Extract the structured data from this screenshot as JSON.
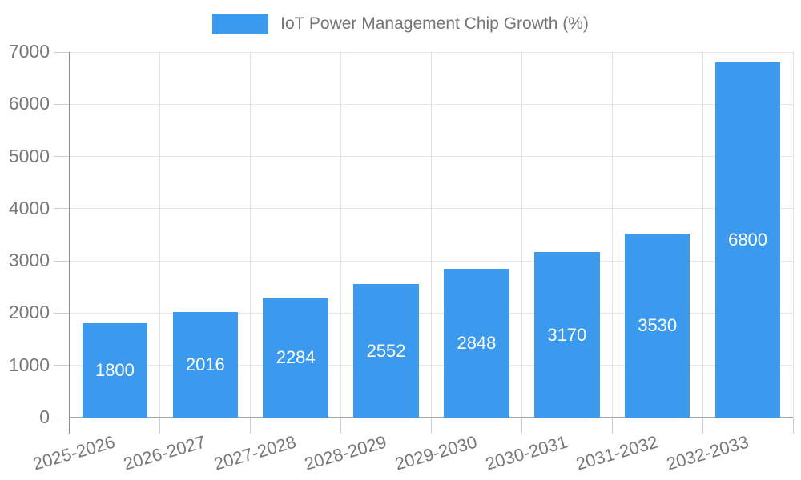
{
  "legend": {
    "label": "IoT Power Management Chip Growth (%)",
    "swatch_color": "#3B9AED"
  },
  "colors": {
    "bar": "#3B9AED",
    "bar_label": "#FFFFFF",
    "axis_text": "#787878",
    "legend_text": "#757575",
    "grid_horizontal": "#E7E7E7",
    "grid_vertical": "#E1E1E1",
    "y_axis_line": "#8A8A8A",
    "x_axis_line": "#A6A6A6",
    "tick": "#CDCDCD",
    "background": "#FFFFFF"
  },
  "chart_data": {
    "type": "bar",
    "title": "IoT Power Management Chip Growth (%)",
    "categories": [
      "2025-2026",
      "2026-2027",
      "2027-2028",
      "2028-2029",
      "2029-2030",
      "2030-2031",
      "2031-2032",
      "2032-2033"
    ],
    "values": [
      1800,
      2016,
      2284,
      2552,
      2848,
      3170,
      3530,
      6800
    ],
    "series_name": "IoT Power Management Chip Growth (%)",
    "xlabel": "",
    "ylabel": "",
    "ylim": [
      0,
      7000
    ],
    "yticks": [
      0,
      1000,
      2000,
      3000,
      4000,
      5000,
      6000,
      7000
    ],
    "grid": true,
    "legend_position": "top-center",
    "value_labels": "inside-center",
    "x_label_rotation_deg": -16
  }
}
